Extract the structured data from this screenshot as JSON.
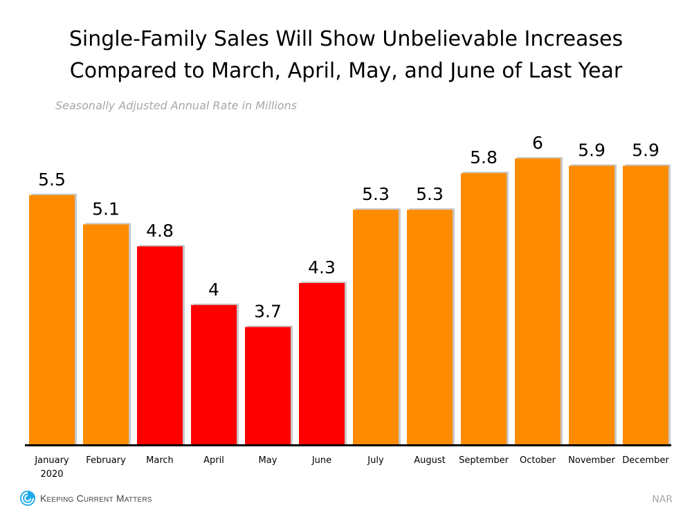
{
  "chart_data": {
    "type": "bar",
    "title": "Single-Family Sales Will Show Unbelievable Increases Compared to March, April, May, and June of Last Year",
    "title_lines": [
      "Single-Family Sales Will Show Unbelievable Increases",
      "Compared to March, April, May, and June of Last Year"
    ],
    "subtitle": "Seasonally Adjusted Annual Rate in Millions",
    "categories": [
      "January",
      "February",
      "March",
      "April",
      "May",
      "June",
      "July",
      "August",
      "September",
      "October",
      "November",
      "December"
    ],
    "category_sublabels": [
      "2020",
      "",
      "",
      "",
      "",
      "",
      "",
      "",
      "",
      "",
      "",
      ""
    ],
    "values": [
      5.5,
      5.1,
      4.8,
      4.0,
      3.7,
      4.3,
      5.3,
      5.3,
      5.8,
      6.0,
      5.9,
      5.9
    ],
    "value_labels": [
      "5.5",
      "5.1",
      "4.8",
      "4",
      "3.7",
      "4.3",
      "5.3",
      "5.3",
      "5.8",
      "6",
      "5.9",
      "5.9"
    ],
    "highlighted": [
      false,
      false,
      true,
      true,
      true,
      true,
      false,
      false,
      false,
      false,
      false,
      false
    ],
    "colors": {
      "normal": "#FF8C00",
      "highlight": "#FF0000",
      "axis": "#000000"
    },
    "ylim": [
      2.1,
      6.5
    ],
    "grid": false,
    "legend": "none"
  },
  "footer": {
    "logo_text": "Keeping Current Matters",
    "source": "NAR"
  }
}
